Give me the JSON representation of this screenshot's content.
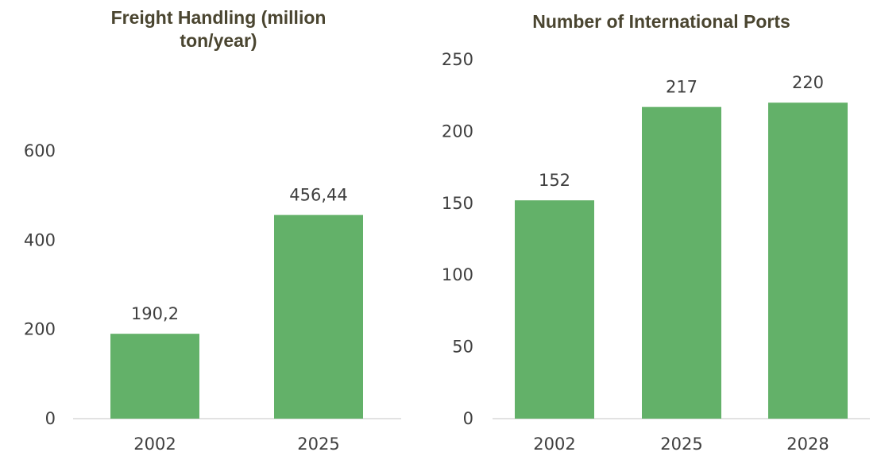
{
  "chart_data": [
    {
      "type": "bar",
      "title": "Freight Handling (million ton/year)",
      "categories": [
        "2002",
        "2025"
      ],
      "values": [
        190.2,
        456.44
      ],
      "value_labels": [
        "190,2",
        "456,44"
      ],
      "ylim": [
        0,
        600
      ],
      "yticks": [
        0,
        200,
        400,
        600
      ],
      "ytick_labels": [
        "0",
        "200",
        "400",
        "600"
      ],
      "grid": false,
      "legend": "none",
      "bar_color": "#63b169"
    },
    {
      "type": "bar",
      "title": "Number of International Ports",
      "categories": [
        "2002",
        "2025",
        "2028"
      ],
      "values": [
        152,
        217,
        220
      ],
      "value_labels": [
        "152",
        "217",
        "220"
      ],
      "ylim": [
        0,
        250
      ],
      "yticks": [
        0,
        50,
        100,
        150,
        200,
        250
      ],
      "ytick_labels": [
        "0",
        "50",
        "100",
        "150",
        "200",
        "250"
      ],
      "grid": false,
      "legend": "none",
      "bar_color": "#63b169"
    }
  ]
}
